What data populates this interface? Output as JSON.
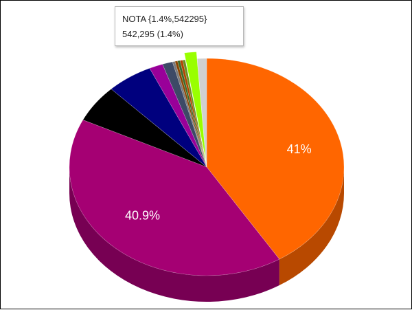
{
  "chart_data": {
    "type": "pie",
    "style": "3d",
    "slices": [
      {
        "value": 41.0,
        "color": "#ff6600",
        "label": "41%"
      },
      {
        "value": 40.9,
        "color": "#a50073",
        "label": "40.9%"
      },
      {
        "value": 5.6,
        "color": "#000000",
        "label": ""
      },
      {
        "value": 5.4,
        "color": "#00007e",
        "label": ""
      },
      {
        "value": 1.6,
        "color": "#990099",
        "label": ""
      },
      {
        "value": 1.2,
        "color": "#3d4a66",
        "label": ""
      },
      {
        "value": 0.3,
        "color": "#7a7a7a",
        "label": ""
      },
      {
        "value": 0.3,
        "color": "#8b4500",
        "label": ""
      },
      {
        "value": 0.3,
        "color": "#3a6b2a",
        "label": ""
      },
      {
        "value": 0.3,
        "color": "#b04400",
        "label": ""
      },
      {
        "value": 0.3,
        "color": "#6b8e23",
        "label": ""
      },
      {
        "value": 1.4,
        "color": "#99ff00",
        "label": "",
        "name": "NOTA",
        "exploded": true
      },
      {
        "value": 1.1,
        "color": "#d0d0d0",
        "label": ""
      }
    ],
    "legend": "none",
    "tooltip": {
      "line1": "NOTA {1.4%,542295}",
      "line2": "542,295 (1.4%)"
    }
  }
}
